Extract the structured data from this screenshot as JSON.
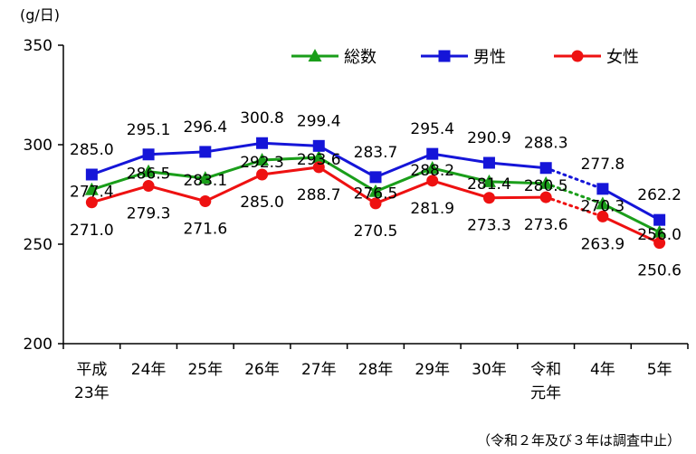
{
  "chart_data": {
    "type": "line",
    "ylabel": "(g/日)",
    "ylim": [
      200,
      350
    ],
    "yticks": [
      200,
      250,
      300,
      350
    ],
    "categories": [
      [
        "平成",
        "23年"
      ],
      [
        "24年"
      ],
      [
        "25年"
      ],
      [
        "26年"
      ],
      [
        "27年"
      ],
      [
        "28年"
      ],
      [
        "29年"
      ],
      [
        "30年"
      ],
      [
        "令和",
        "元年"
      ],
      [
        "4年"
      ],
      [
        "5年"
      ]
    ],
    "series": [
      {
        "name": "総数",
        "marker": "triangle",
        "color": "#1a9e1a",
        "values": [
          277.4,
          286.5,
          283.1,
          292.3,
          293.6,
          276.5,
          288.2,
          281.4,
          280.5,
          270.3,
          256.0
        ]
      },
      {
        "name": "男性",
        "marker": "square",
        "color": "#1515d8",
        "values": [
          285.0,
          295.1,
          296.4,
          300.8,
          299.4,
          283.7,
          295.4,
          290.9,
          288.3,
          277.8,
          262.2
        ]
      },
      {
        "name": "女性",
        "marker": "circle",
        "color": "#ee1111",
        "values": [
          271.0,
          279.3,
          271.6,
          285.0,
          288.7,
          270.5,
          281.9,
          273.3,
          273.6,
          263.9,
          250.6
        ]
      }
    ],
    "labels": {
      "総数": [
        "277.4",
        "286.5",
        "283.1",
        "292.3",
        "293.6",
        "276.5",
        "288.2",
        "281.4",
        "280.5",
        "270.3",
        "256.0"
      ],
      "男性": [
        "285.0",
        "295.1",
        "296.4",
        "300.8",
        "299.4",
        "283.7",
        "295.4",
        "290.9",
        "288.3",
        "277.8",
        "262.2"
      ],
      "女性": [
        "271.0",
        "279.3",
        "271.6",
        "285.0",
        "288.7",
        "270.5",
        "281.9",
        "273.3",
        "273.6",
        "263.9",
        "250.6"
      ]
    },
    "dotted_after_index": 8,
    "legend_position": "top-right",
    "grid": false,
    "note": "（令和２年及び３年は調査中止）"
  }
}
